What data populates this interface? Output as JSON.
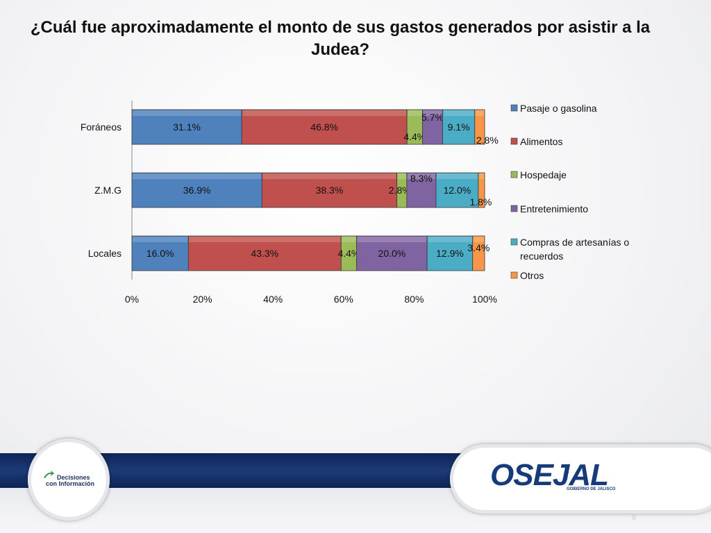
{
  "title": {
    "line1": "¿Cuál fue aproximadamente el monto de sus gastos generados por asistir a la",
    "line2": "Judea?"
  },
  "chart_data": {
    "type": "bar",
    "orientation": "horizontal",
    "stacked": "percent",
    "categories": [
      "Foráneos",
      "Z.M.G",
      "Locales"
    ],
    "series": [
      {
        "name": "Pasaje o gasolina",
        "color": "#4f81bd",
        "values": [
          31.1,
          36.9,
          16.0
        ],
        "labels": [
          "31.1%",
          "36.9%",
          "16.0%"
        ]
      },
      {
        "name": "Alimentos",
        "color": "#c0504d",
        "values": [
          46.8,
          38.3,
          43.3
        ],
        "labels": [
          "46.8%",
          "38.3%",
          "43.3%"
        ]
      },
      {
        "name": "Hospedaje",
        "color": "#9bbb59",
        "values": [
          4.4,
          2.8,
          4.4
        ],
        "labels": [
          "4.4%",
          "2.8%",
          "4.4%"
        ]
      },
      {
        "name": "Entretenimiento",
        "color": "#8064a2",
        "values": [
          5.7,
          8.3,
          20.0
        ],
        "labels": [
          "5.7%",
          "8.3%",
          "20.0%"
        ]
      },
      {
        "name": "Compras de artesanías o recuerdos",
        "color": "#4bacc6",
        "values": [
          9.1,
          12.0,
          12.9
        ],
        "labels": [
          "9.1%",
          "12.0%",
          "12.9%"
        ]
      },
      {
        "name": "Otros",
        "color": "#f79646",
        "values": [
          2.8,
          1.8,
          3.4
        ],
        "labels": [
          "2.8%",
          "1.8%",
          "3.4%"
        ]
      }
    ],
    "x_ticks": [
      "0%",
      "20%",
      "40%",
      "60%",
      "80%",
      "100%"
    ],
    "xlim": [
      0,
      100
    ],
    "legend_position": "right",
    "legend_lines": [
      [
        "Pasaje o gasolina"
      ],
      [
        "Alimentos"
      ],
      [
        "Hospedaje"
      ],
      [
        "Entretenimiento"
      ],
      [
        "Compras de artesanías o",
        "recuerdos"
      ],
      [
        "Otros"
      ]
    ],
    "grid": false
  },
  "footer": {
    "left_logo_line1": "Decisiones",
    "left_logo_line2": "con Información",
    "right_logo": "OSEJAL",
    "right_logo_sub": "GOBIERNO DE JALISCO",
    "page_number": "6"
  }
}
